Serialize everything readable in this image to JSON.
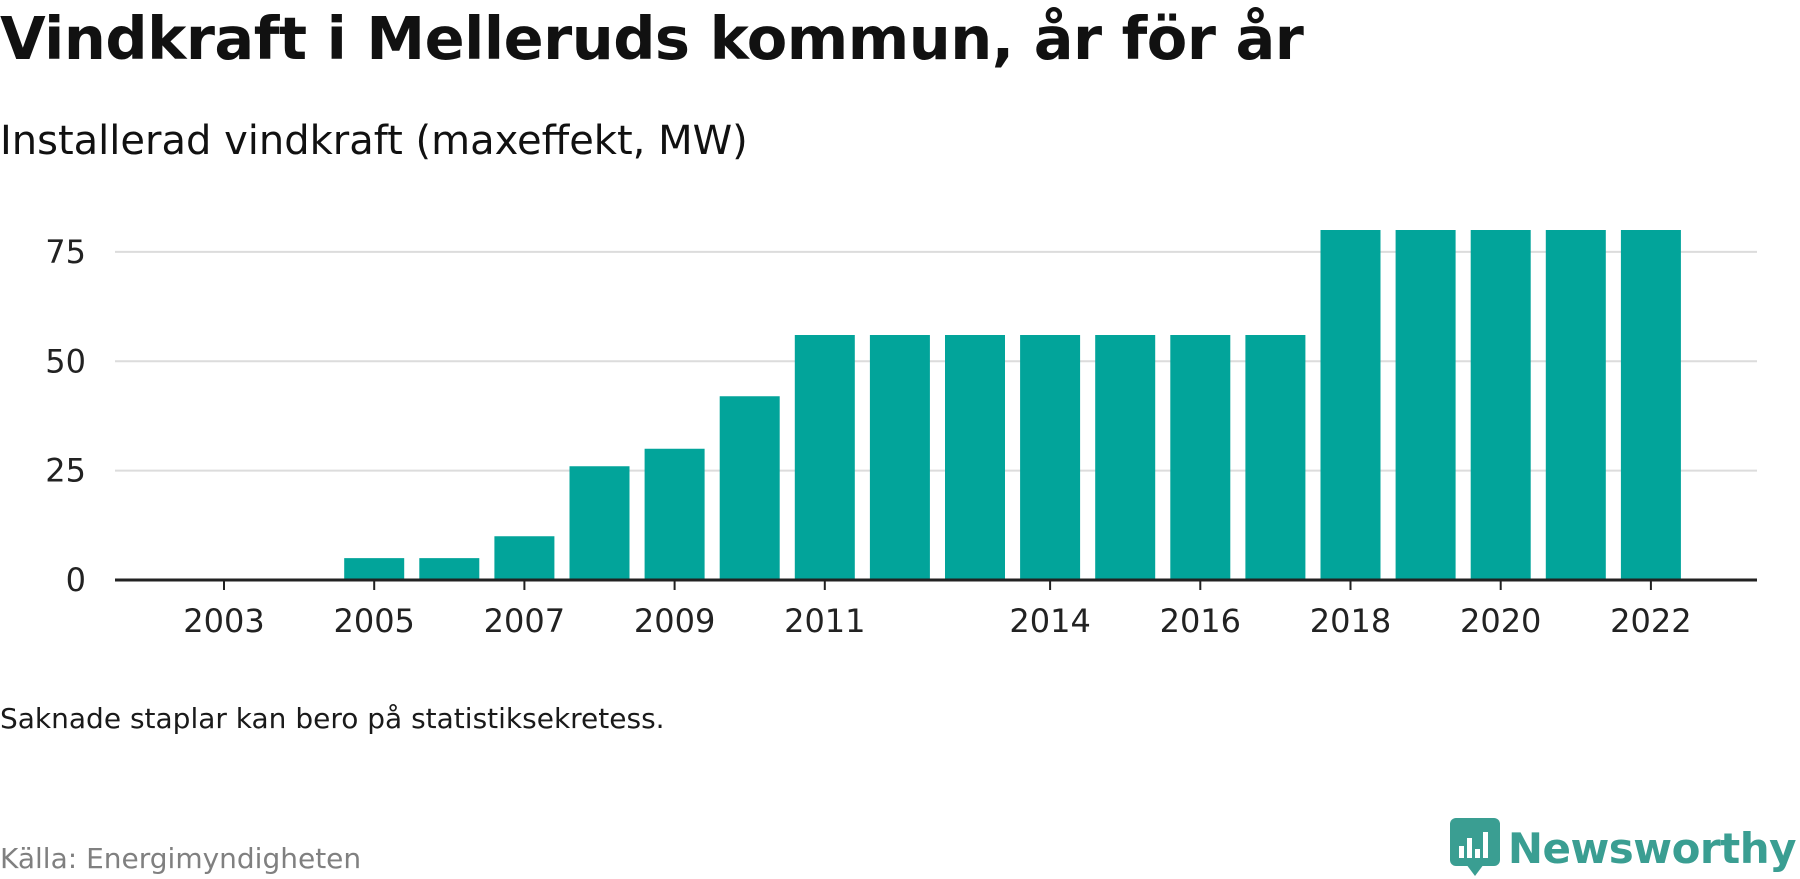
{
  "title": "Vindkraft i Melleruds kommun, år för år",
  "subtitle": "Installerad vindkraft (maxeffekt, MW)",
  "footnote": "Saknade staplar kan bero på statistiksekretess.",
  "source": "Källa: Energimyndigheten",
  "brand": {
    "name": "Newsworthy",
    "icon": "newsworthy-logo-icon",
    "color": "#3a9e92"
  },
  "colors": {
    "bar": "#02a49a",
    "grid": "#dcdcdc",
    "axis": "#222222",
    "tick_text": "#222222"
  },
  "chart_data": {
    "type": "bar",
    "x": [
      2003,
      2004,
      2005,
      2006,
      2007,
      2008,
      2009,
      2010,
      2011,
      2012,
      2013,
      2014,
      2015,
      2016,
      2017,
      2018,
      2019,
      2020,
      2021,
      2022
    ],
    "values": [
      0,
      0,
      5,
      5,
      10,
      26,
      30,
      42,
      56,
      56,
      56,
      56,
      56,
      56,
      56,
      80,
      80,
      80,
      80,
      80
    ],
    "ylim": [
      0,
      80
    ],
    "yticks": [
      0,
      25,
      50,
      75
    ],
    "ytick_labels": [
      "0",
      "25",
      "50",
      "75"
    ],
    "xtick_labels": [
      "2003",
      "2005",
      "2007",
      "2009",
      "2011",
      "2014",
      "2016",
      "2018",
      "2020",
      "2022"
    ],
    "grid": true,
    "legend": "none"
  }
}
